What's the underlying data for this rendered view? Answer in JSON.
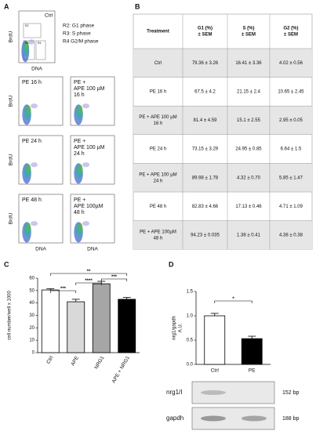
{
  "panels": {
    "a": "A",
    "b": "B",
    "c": "C",
    "d": "D"
  },
  "flow": {
    "y_label": "BrdU",
    "x_label": "DNA",
    "control": "Ctrl",
    "gates": [
      "R2",
      "R3",
      "R4"
    ],
    "legend": [
      "R2: G1 phase",
      "R3: S phase",
      "R4 G2/M phase"
    ],
    "plots": [
      [
        "PE 16 h"
      ],
      [
        "PE +",
        "APE 100 µM",
        "16 h"
      ],
      [
        "PE 24 h"
      ],
      [
        "PE +",
        "APE 100 µM",
        "24 h"
      ],
      [
        "PE 48 h"
      ],
      [
        "PE +",
        "APE 100µM",
        "48 h"
      ]
    ]
  },
  "table": {
    "header": [
      [
        "Treatment"
      ],
      [
        "G1 (%)",
        "± SEM"
      ],
      [
        "S (%)",
        "± SEM"
      ],
      [
        "G2 (%)",
        "± SEM"
      ]
    ],
    "rows": [
      [
        [
          "Ctrl"
        ],
        "79.36 ± 3.26",
        "16.41 ± 3.36",
        "4.02 ± 0.56"
      ],
      [
        [
          "PE 16 h"
        ],
        "67.5 ± 4.2",
        "21.15 ± 2.4",
        "10.65 ± 2.45"
      ],
      [
        [
          "PE + APE 100 µM",
          "16 h"
        ],
        "81.4 ± 4.59",
        "15.1 ± 2.55",
        "2.95 ± 0.05"
      ],
      [
        [
          "PE 24 h"
        ],
        "73.15 ± 3.29",
        "24.95 ± 0.85",
        "6.64 ± 1.5"
      ],
      [
        [
          "PE + APE 100 µM",
          "24 h"
        ],
        "89.98 ± 1.78",
        "4.32 ± 0.70",
        "5.85 ± 1.47"
      ],
      [
        [
          "PE 48 h"
        ],
        "82.83 ± 4.66",
        "17.13 ± 0.46",
        "4.71 ± 1.09"
      ],
      [
        [
          "PE + APE 100µM",
          "48 h"
        ],
        "94.23 ± 0.035",
        "1.38 ± 0.41",
        "4.38 ± 0.38"
      ]
    ]
  },
  "chart_data": [
    {
      "type": "bar",
      "y_label": [
        "cell number/well x 1000"
      ],
      "categories": [
        "Ctrl",
        "APE",
        "NRG1",
        "APE + NRG1"
      ],
      "values": [
        50.5,
        41,
        55.5,
        43
      ],
      "errors": [
        1,
        2,
        2,
        1.5
      ],
      "colors": [
        "#ffffff",
        "#d9d9d9",
        "#a6a6a6",
        "#000000"
      ],
      "ylim": [
        0,
        60
      ],
      "yticks": [
        0,
        10,
        20,
        30,
        40,
        50,
        60
      ],
      "annotations": [
        "**",
        "****",
        "***",
        "***"
      ]
    },
    {
      "type": "bar",
      "y_label": [
        "nrg1/gapdh",
        "A.U."
      ],
      "categories": [
        "Ctrl",
        "PE"
      ],
      "values": [
        1.0,
        0.53
      ],
      "errors": [
        0.05,
        0.05
      ],
      "colors": [
        "#ffffff",
        "#000000"
      ],
      "ylim": [
        0,
        1.5
      ],
      "yticks": [
        {
          "value": 0,
          "label": "0.0"
        },
        0.5,
        {
          "value": 1,
          "label": "1.0"
        },
        1.5
      ],
      "annotations": [
        "*"
      ]
    }
  ],
  "gel": {
    "bands": [
      "nrg1/I",
      "gapdh"
    ],
    "sizes": [
      "152 bp",
      "188 bp"
    ]
  }
}
